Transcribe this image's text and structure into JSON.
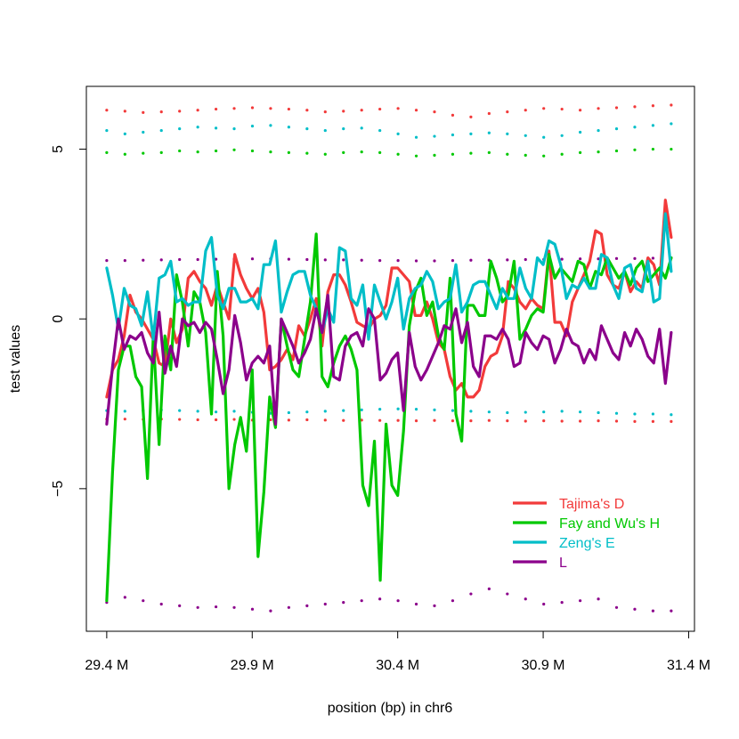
{
  "chart_data": {
    "type": "line",
    "xlabel": "position (bp) in chr6",
    "ylabel": "test values",
    "xlim": [
      29.33,
      31.42
    ],
    "ylim": [
      -9.2,
      6.85
    ],
    "x_ticks": [
      {
        "value": 29.4,
        "label": "29.4 M"
      },
      {
        "value": 29.9,
        "label": "29.9 M"
      },
      {
        "value": 30.4,
        "label": "30.4 M"
      },
      {
        "value": 30.9,
        "label": "30.9 M"
      },
      {
        "value": 31.4,
        "label": "31.4 M"
      }
    ],
    "y_ticks": [
      {
        "value": -5,
        "label": "−5"
      },
      {
        "value": 0,
        "label": "0"
      },
      {
        "value": 5,
        "label": "5"
      }
    ],
    "grid": false,
    "legend_position": "bottom-right",
    "x": [
      29.4,
      29.42,
      29.44,
      29.46,
      29.48,
      29.5,
      29.52,
      29.54,
      29.56,
      29.58,
      29.6,
      29.62,
      29.64,
      29.66,
      29.68,
      29.7,
      29.72,
      29.74,
      29.76,
      29.78,
      29.8,
      29.82,
      29.84,
      29.86,
      29.88,
      29.9,
      29.92,
      29.94,
      29.96,
      29.98,
      30.0,
      30.02,
      30.04,
      30.06,
      30.08,
      30.1,
      30.12,
      30.14,
      30.16,
      30.18,
      30.2,
      30.22,
      30.24,
      30.26,
      30.28,
      30.3,
      30.32,
      30.34,
      30.36,
      30.38,
      30.4,
      30.42,
      30.44,
      30.46,
      30.48,
      30.5,
      30.52,
      30.54,
      30.56,
      30.58,
      30.6,
      30.62,
      30.64,
      30.66,
      30.68,
      30.7,
      30.72,
      30.74,
      30.76,
      30.78,
      30.8,
      30.82,
      30.84,
      30.86,
      30.88,
      30.9,
      30.92,
      30.94,
      30.96,
      30.98,
      31.0,
      31.02,
      31.04,
      31.06,
      31.08,
      31.1,
      31.12,
      31.14,
      31.16,
      31.18,
      31.2,
      31.22,
      31.24,
      31.26,
      31.28,
      31.3,
      31.32,
      31.34
    ],
    "series": [
      {
        "name": "Tajima's D",
        "color": "#f23a3a",
        "values": [
          -2.3,
          -1.5,
          -1.2,
          -0.5,
          0.7,
          0.2,
          0.0,
          -0.3,
          -0.6,
          -1.3,
          -1.4,
          0.0,
          -0.7,
          -0.3,
          1.2,
          1.4,
          1.1,
          0.9,
          0.4,
          1.0,
          0.5,
          0.0,
          1.9,
          1.3,
          0.9,
          0.6,
          0.9,
          0.2,
          -1.5,
          -1.4,
          -1.2,
          -0.9,
          -1.2,
          -0.2,
          -0.5,
          0.0,
          0.6,
          -0.8,
          0.8,
          1.3,
          1.3,
          1.0,
          0.5,
          -0.1,
          -0.2,
          -0.3,
          0.0,
          0.1,
          0.4,
          1.5,
          1.5,
          1.3,
          1.1,
          0.1,
          0.1,
          0.5,
          0.0,
          -0.7,
          -0.9,
          -1.7,
          -2.1,
          -1.9,
          -2.3,
          -2.3,
          -2.1,
          -1.4,
          -1.1,
          -1.0,
          -0.5,
          1.1,
          0.9,
          0.5,
          0.3,
          0.6,
          0.4,
          0.3,
          2.0,
          -0.1,
          -0.1,
          -0.5,
          0.5,
          0.9,
          1.3,
          1.7,
          2.6,
          2.5,
          1.3,
          1.0,
          0.9,
          1.4,
          0.8,
          1.1,
          0.9,
          1.8,
          1.6,
          1.0,
          3.5,
          2.4
        ]
      },
      {
        "name": "Fay and Wu's H",
        "color": "#00c800",
        "values": [
          -8.3,
          -4.5,
          -1.5,
          -0.8,
          -0.8,
          -1.7,
          -2.0,
          -4.7,
          -0.5,
          -3.7,
          -0.5,
          -1.5,
          1.3,
          0.5,
          -0.8,
          0.8,
          0.5,
          -0.4,
          -2.8,
          1.4,
          -0.5,
          -5.0,
          -3.7,
          -2.9,
          -3.9,
          -1.5,
          -7.0,
          -5.1,
          -2.3,
          -3.2,
          0.0,
          -0.8,
          -1.5,
          -1.7,
          -0.6,
          0.5,
          2.5,
          -1.7,
          -2.0,
          -1.3,
          -0.8,
          -0.5,
          -0.9,
          -1.5,
          -4.9,
          -5.5,
          -3.6,
          -7.7,
          -3.1,
          -4.9,
          -5.2,
          -3.3,
          -0.2,
          0.8,
          1.2,
          0.1,
          0.5,
          -0.5,
          -0.9,
          1.2,
          -2.8,
          -3.6,
          0.4,
          0.4,
          0.1,
          0.1,
          1.7,
          1.2,
          0.5,
          0.7,
          1.7,
          -0.6,
          -0.3,
          0.1,
          0.3,
          0.2,
          1.9,
          1.2,
          1.5,
          1.3,
          1.1,
          1.7,
          1.6,
          0.9,
          1.4,
          1.3,
          1.8,
          1.5,
          1.2,
          1.4,
          1.0,
          1.5,
          1.7,
          1.1,
          1.3,
          1.5,
          1.2,
          1.8
        ]
      },
      {
        "name": "Zeng's E",
        "color": "#00bec8",
        "values": [
          1.5,
          0.7,
          -0.3,
          0.9,
          0.4,
          0.3,
          -0.2,
          0.8,
          -0.6,
          1.2,
          1.3,
          1.7,
          0.5,
          0.6,
          0.4,
          0.5,
          0.5,
          2.0,
          2.4,
          0.7,
          0.3,
          0.9,
          0.9,
          0.5,
          0.5,
          0.6,
          0.3,
          1.6,
          1.6,
          2.3,
          0.2,
          0.8,
          1.3,
          1.4,
          1.4,
          0.7,
          0.3,
          -0.4,
          0.3,
          -0.1,
          2.1,
          2.0,
          0.6,
          0.4,
          1.0,
          -0.6,
          1.0,
          0.5,
          0.0,
          0.5,
          1.2,
          -0.3,
          0.6,
          0.9,
          1.0,
          1.4,
          1.1,
          0.3,
          0.5,
          0.6,
          1.6,
          0.2,
          0.5,
          1.0,
          1.1,
          1.1,
          0.7,
          0.3,
          0.9,
          0.6,
          0.6,
          1.5,
          0.9,
          0.6,
          1.8,
          1.6,
          2.3,
          2.2,
          1.6,
          0.6,
          1.0,
          0.9,
          1.2,
          0.9,
          0.9,
          1.9,
          1.8,
          1.0,
          0.6,
          1.5,
          1.6,
          0.9,
          0.8,
          1.7,
          0.5,
          0.6,
          3.1,
          1.4
        ]
      },
      {
        "name": "L",
        "color": "#8b008b",
        "values": [
          -3.1,
          -1.4,
          0.0,
          -0.9,
          -0.5,
          -0.6,
          -0.4,
          -1.0,
          -1.3,
          0.2,
          -1.6,
          -0.8,
          -1.4,
          0.0,
          -0.2,
          -0.1,
          -0.4,
          -0.1,
          -0.3,
          -1.2,
          -2.2,
          -1.5,
          0.1,
          -0.7,
          -1.8,
          -1.3,
          -1.1,
          -1.3,
          -0.8,
          -3.1,
          0.0,
          -0.4,
          -0.8,
          -1.3,
          -1.0,
          -0.6,
          0.3,
          -0.4,
          0.7,
          -1.7,
          -1.8,
          -0.8,
          -0.5,
          -0.4,
          -0.8,
          0.3,
          0.0,
          -1.8,
          -1.6,
          -1.2,
          -1.0,
          -2.7,
          -0.4,
          -1.4,
          -1.8,
          -1.5,
          -1.1,
          -0.7,
          -0.2,
          -0.3,
          0.3,
          -0.7,
          -0.1,
          -1.4,
          -1.7,
          -0.5,
          -0.5,
          -0.6,
          -0.3,
          -0.6,
          -1.4,
          -1.3,
          -0.4,
          -0.7,
          -0.9,
          -0.5,
          -0.6,
          -1.3,
          -0.9,
          -0.3,
          -0.7,
          -0.8,
          -1.3,
          -0.9,
          -1.2,
          -0.2,
          -0.6,
          -1.0,
          -1.2,
          -0.4,
          -0.8,
          -0.3,
          -0.6,
          -1.1,
          -1.3,
          -0.3,
          -1.9,
          -0.4
        ]
      }
    ],
    "threshold_series": [
      {
        "name": "Tajima's D upper",
        "color": "#f23a3a",
        "values": [
          6.15,
          6.12,
          6.08,
          6.1,
          6.12,
          6.15,
          6.18,
          6.2,
          6.22,
          6.2,
          6.18,
          6.15,
          6.1,
          6.12,
          6.15,
          6.18,
          6.2,
          6.15,
          6.1,
          6.0,
          5.95,
          6.05,
          6.1,
          6.15,
          6.2,
          6.18,
          6.15,
          6.2,
          6.22,
          6.25,
          6.28,
          6.3
        ]
      },
      {
        "name": "Tajima's D lower",
        "color": "#f23a3a",
        "values": [
          -2.95,
          -2.95,
          -2.96,
          -2.95,
          -2.96,
          -2.97,
          -2.97,
          -2.96,
          -2.98,
          -2.97,
          -2.98,
          -2.97,
          -2.98,
          -2.99,
          -2.98,
          -2.99,
          -2.99,
          -3.0,
          -2.99,
          -3.0,
          -3.0,
          -2.99,
          -3.0,
          -3.01,
          -3.0,
          -3.01,
          -3.01,
          -3.0,
          -3.01,
          -3.02,
          -3.02,
          -3.02
        ]
      },
      {
        "name": "Fay and Wu's H upper",
        "color": "#00c800",
        "values": [
          4.9,
          4.85,
          4.88,
          4.9,
          4.95,
          4.92,
          4.95,
          4.98,
          4.95,
          4.92,
          4.9,
          4.88,
          4.85,
          4.9,
          4.92,
          4.9,
          4.85,
          4.8,
          4.82,
          4.85,
          4.88,
          4.9,
          4.85,
          4.82,
          4.8,
          4.85,
          4.9,
          4.92,
          4.95,
          4.98,
          5.0,
          5.0
        ]
      },
      {
        "name": "Zeng's E upper",
        "color": "#00bec8",
        "values": [
          5.55,
          5.45,
          5.5,
          5.55,
          5.6,
          5.65,
          5.62,
          5.6,
          5.68,
          5.7,
          5.65,
          5.6,
          5.55,
          5.6,
          5.62,
          5.55,
          5.45,
          5.35,
          5.38,
          5.42,
          5.45,
          5.48,
          5.45,
          5.4,
          5.35,
          5.4,
          5.5,
          5.55,
          5.6,
          5.65,
          5.7,
          5.75
        ]
      },
      {
        "name": "Zeng's E lower",
        "color": "#00bec8",
        "values": [
          -2.7,
          -2.72,
          -2.7,
          -2.68,
          -2.7,
          -2.72,
          -2.74,
          -2.72,
          -2.75,
          -2.78,
          -2.76,
          -2.74,
          -2.72,
          -2.7,
          -2.68,
          -2.66,
          -2.65,
          -2.66,
          -2.68,
          -2.7,
          -2.72,
          -2.74,
          -2.76,
          -2.75,
          -2.74,
          -2.72,
          -2.74,
          -2.76,
          -2.78,
          -2.8,
          -2.8,
          -2.82
        ]
      },
      {
        "name": "L upper",
        "color": "#8b008b",
        "values": [
          1.72,
          1.72,
          1.73,
          1.74,
          1.75,
          1.75,
          1.76,
          1.76,
          1.77,
          1.77,
          1.76,
          1.75,
          1.74,
          1.74,
          1.73,
          1.72,
          1.72,
          1.71,
          1.71,
          1.72,
          1.73,
          1.73,
          1.74,
          1.75,
          1.75,
          1.76,
          1.77,
          1.77,
          1.78,
          1.78,
          1.79,
          1.8
        ]
      },
      {
        "name": "L lower",
        "color": "#8b008b",
        "values": [
          -8.35,
          -8.2,
          -8.3,
          -8.4,
          -8.45,
          -8.5,
          -8.48,
          -8.5,
          -8.55,
          -8.6,
          -8.5,
          -8.45,
          -8.4,
          -8.35,
          -8.3,
          -8.25,
          -8.3,
          -8.4,
          -8.45,
          -8.3,
          -8.1,
          -7.95,
          -8.1,
          -8.25,
          -8.4,
          -8.35,
          -8.3,
          -8.25,
          -8.5,
          -8.55,
          -8.6,
          -8.6
        ]
      }
    ]
  }
}
